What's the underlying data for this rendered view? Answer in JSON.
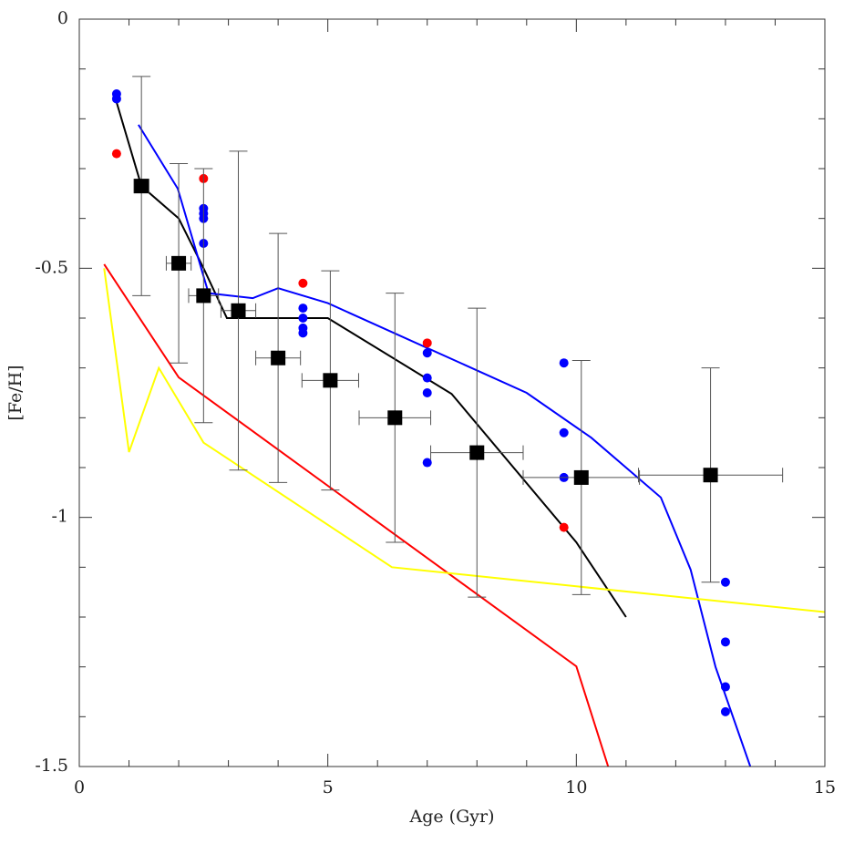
{
  "chart_data": {
    "type": "scatter",
    "xlabel": "Age (Gyr)",
    "ylabel": "[Fe/H]",
    "xlim": [
      0,
      15
    ],
    "ylim": [
      -1.5,
      0
    ],
    "xticks": [
      0,
      5,
      10,
      15
    ],
    "yticks": [
      -1.5,
      -1,
      -0.5,
      0
    ],
    "xminor": [
      1,
      2,
      3,
      4,
      6,
      7,
      8,
      9,
      11,
      12,
      13,
      14
    ],
    "yminor": [
      -1.4,
      -1.3,
      -1.2,
      -1.1,
      -0.9,
      -0.8,
      -0.7,
      -0.6,
      -0.4,
      -0.3,
      -0.2,
      -0.1
    ],
    "series": [
      {
        "style": "line",
        "color": "#000000",
        "x": [
          0.73,
          1.25,
          2.0,
          2.5,
          2.97,
          5.0,
          7.49,
          10.0,
          11.0
        ],
        "values": [
          -0.16,
          -0.335,
          -0.4,
          -0.5,
          -0.6,
          -0.6,
          -0.752,
          -1.05,
          -1.2
        ]
      },
      {
        "style": "line",
        "color": "#0000ff",
        "x": [
          1.19,
          1.98,
          2.6,
          3.49,
          4.0,
          5.0,
          9.0,
          10.3,
          11.7,
          12.3,
          12.8,
          13.5
        ],
        "values": [
          -0.212,
          -0.34,
          -0.55,
          -0.56,
          -0.54,
          -0.57,
          -0.75,
          -0.84,
          -0.96,
          -1.105,
          -1.3,
          -1.5
        ]
      },
      {
        "style": "line",
        "color": "#ff0000",
        "x": [
          0.5,
          2.0,
          10.0,
          10.64
        ],
        "values": [
          -0.492,
          -0.719,
          -1.299,
          -1.5
        ]
      },
      {
        "style": "line",
        "color": "#ffff00",
        "x": [
          0.5,
          1.0,
          1.6,
          2.5,
          6.29,
          15.0
        ],
        "values": [
          -0.5,
          -0.869,
          -0.7,
          -0.85,
          -1.1,
          -1.19
        ]
      },
      {
        "style": "dots",
        "color": "#0000ff",
        "x": [
          0.75,
          0.75,
          2.5,
          2.5,
          2.5,
          2.5,
          4.5,
          4.5,
          4.5,
          4.5,
          7,
          7,
          7,
          7,
          9.75,
          9.75,
          9.75,
          13,
          13,
          13,
          13
        ],
        "values": [
          -0.15,
          -0.16,
          -0.38,
          -0.39,
          -0.4,
          -0.45,
          -0.58,
          -0.6,
          -0.62,
          -0.63,
          -0.67,
          -0.72,
          -0.75,
          -0.89,
          -0.69,
          -0.83,
          -0.92,
          -1.13,
          -1.25,
          -1.34,
          -1.39
        ]
      },
      {
        "style": "dots",
        "color": "#ff0000",
        "x": [
          0.75,
          2.5,
          4.5,
          7,
          9.75
        ],
        "values": [
          -0.27,
          -0.32,
          -0.53,
          -0.65,
          -1.02
        ]
      },
      {
        "style": "squares",
        "color": "#000000",
        "x": [
          1.25,
          2.0,
          2.5,
          3.2,
          4.0,
          5.05,
          6.35,
          8.0,
          10.1,
          12.7
        ],
        "values": [
          -0.335,
          -0.49,
          -0.555,
          -0.585,
          -0.68,
          -0.725,
          -0.8,
          -0.87,
          -0.92,
          -0.915
        ],
        "xerr": [
          0.15,
          0.25,
          0.3,
          0.35,
          0.45,
          0.57,
          0.72,
          0.93,
          1.17,
          1.45
        ],
        "yerr": [
          0.22,
          0.2,
          0.255,
          0.32,
          0.25,
          0.22,
          0.25,
          0.29,
          0.235,
          0.215
        ]
      }
    ]
  }
}
